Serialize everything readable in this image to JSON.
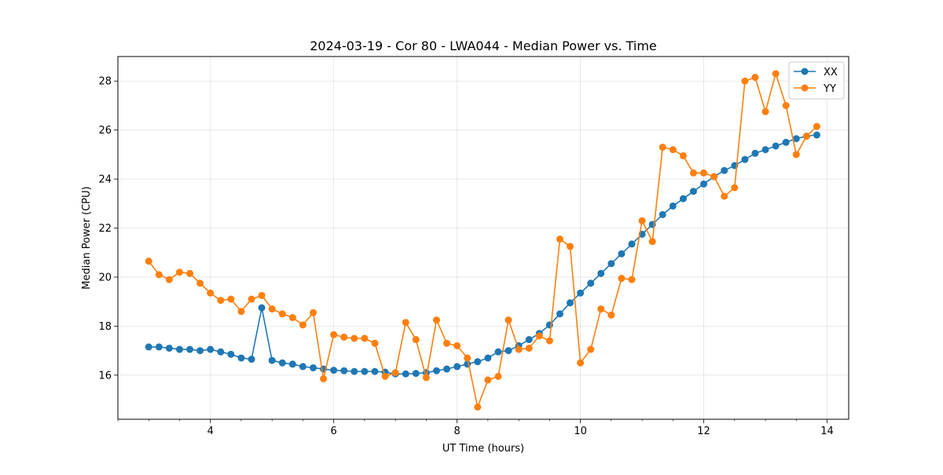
{
  "chart_data": {
    "type": "line",
    "title": "2024-03-19 - Cor 80 - LWA044 - Median Power vs. Time",
    "xlabel": "UT Time (hours)",
    "ylabel": "Median Power (CPU)",
    "xlim": [
      2.5,
      14.35
    ],
    "ylim": [
      14.2,
      29.0
    ],
    "xticks": [
      4,
      6,
      8,
      10,
      12,
      14
    ],
    "yticks": [
      16,
      18,
      20,
      22,
      24,
      26,
      28
    ],
    "grid": true,
    "legend_position": "top-right",
    "x": [
      3.0,
      3.167,
      3.333,
      3.5,
      3.667,
      3.833,
      4.0,
      4.167,
      4.333,
      4.5,
      4.667,
      4.833,
      5.0,
      5.167,
      5.333,
      5.5,
      5.667,
      5.833,
      6.0,
      6.167,
      6.333,
      6.5,
      6.667,
      6.833,
      7.0,
      7.167,
      7.333,
      7.5,
      7.667,
      7.833,
      8.0,
      8.167,
      8.333,
      8.5,
      8.667,
      8.833,
      9.0,
      9.167,
      9.333,
      9.5,
      9.667,
      9.833,
      10.0,
      10.167,
      10.333,
      10.5,
      10.667,
      10.833,
      11.0,
      11.167,
      11.333,
      11.5,
      11.667,
      11.833,
      12.0,
      12.167,
      12.333,
      12.5,
      12.667,
      12.833,
      13.0,
      13.167,
      13.333,
      13.5,
      13.667,
      13.833
    ],
    "series": [
      {
        "name": "XX",
        "color": "#1f77b4",
        "values": [
          17.15,
          17.15,
          17.1,
          17.05,
          17.05,
          17.0,
          17.05,
          16.95,
          16.85,
          16.7,
          16.65,
          18.75,
          16.6,
          16.5,
          16.45,
          16.35,
          16.3,
          16.25,
          16.2,
          16.18,
          16.15,
          16.15,
          16.15,
          16.12,
          16.05,
          16.05,
          16.07,
          16.1,
          16.18,
          16.25,
          16.35,
          16.45,
          16.55,
          16.7,
          16.95,
          17.0,
          17.2,
          17.45,
          17.7,
          18.05,
          18.5,
          18.95,
          19.35,
          19.75,
          20.15,
          20.55,
          20.95,
          21.35,
          21.75,
          22.15,
          22.55,
          22.9,
          23.2,
          23.5,
          23.8,
          24.1,
          24.35,
          24.55,
          24.8,
          25.05,
          25.2,
          25.35,
          25.5,
          25.65,
          25.75,
          25.8
        ]
      },
      {
        "name": "YY",
        "color": "#ff7f0e",
        "values": [
          20.65,
          20.1,
          19.9,
          20.2,
          20.15,
          19.75,
          19.35,
          19.05,
          19.1,
          18.6,
          19.1,
          19.25,
          18.7,
          18.5,
          18.35,
          18.05,
          18.55,
          15.85,
          17.65,
          17.55,
          17.5,
          17.5,
          17.3,
          15.95,
          16.1,
          18.15,
          17.45,
          15.9,
          18.25,
          17.3,
          17.2,
          16.7,
          14.7,
          15.8,
          15.95,
          18.25,
          17.05,
          17.1,
          17.6,
          17.4,
          21.55,
          21.25,
          16.5,
          17.05,
          18.7,
          18.45,
          19.95,
          19.9,
          22.3,
          21.45,
          25.3,
          25.2,
          24.95,
          24.25,
          24.25,
          24.1,
          23.3,
          23.65,
          28.0,
          28.15,
          26.75,
          28.3,
          27.0,
          25.0,
          25.75,
          26.15
        ]
      }
    ]
  }
}
